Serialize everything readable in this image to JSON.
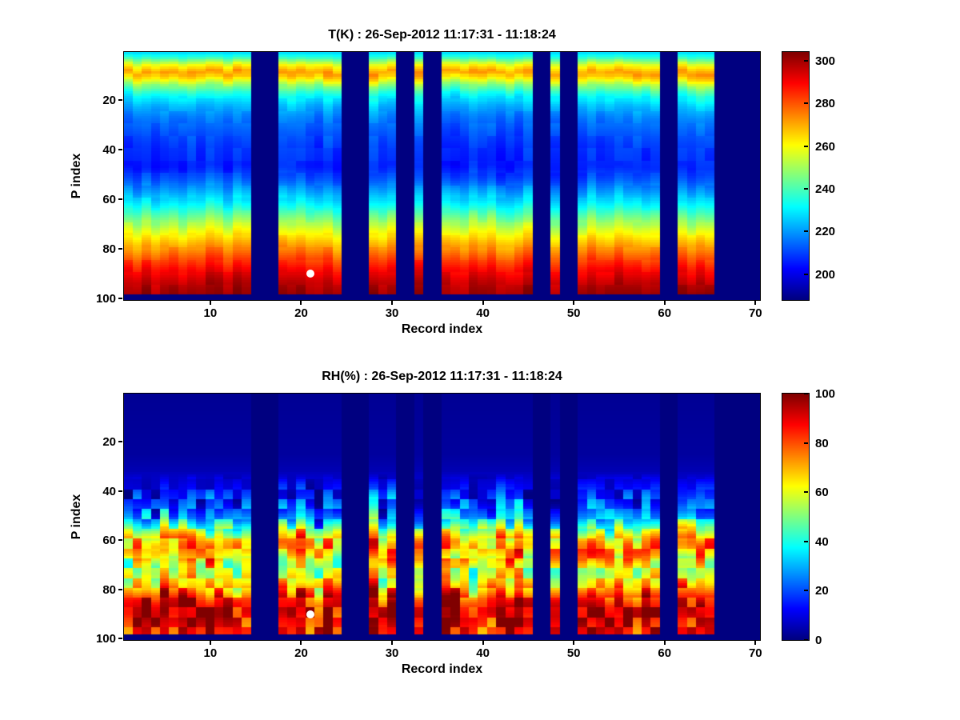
{
  "figure": {
    "background": "#ffffff"
  },
  "chart_data": [
    {
      "id": "temperature",
      "type": "heatmap",
      "title": "T(K) : 26-Sep-2012 11:17:31 - 11:18:24",
      "xlabel": "Record index",
      "ylabel": "P index",
      "x_range": [
        1,
        70
      ],
      "y_range": [
        1,
        100
      ],
      "x_ticks": [
        10,
        20,
        30,
        40,
        50,
        60,
        70
      ],
      "y_ticks": [
        20,
        40,
        60,
        80,
        100
      ],
      "colormap": "jet",
      "value_range": [
        188,
        304
      ],
      "colorbar_ticks": [
        200,
        220,
        240,
        260,
        280,
        300
      ],
      "missing_records": [
        [
          15,
          17
        ],
        [
          25,
          27
        ],
        [
          31,
          32
        ],
        [
          34,
          35
        ],
        [
          46,
          47
        ],
        [
          49,
          50
        ],
        [
          60,
          61
        ],
        [
          66,
          70
        ]
      ],
      "bottom_gap_rows": 2,
      "profile": [
        [
          1,
          228
        ],
        [
          3,
          238
        ],
        [
          6,
          260
        ],
        [
          9,
          272
        ],
        [
          11,
          265
        ],
        [
          14,
          248
        ],
        [
          18,
          233
        ],
        [
          22,
          224
        ],
        [
          27,
          217
        ],
        [
          33,
          212
        ],
        [
          40,
          208
        ],
        [
          47,
          206
        ],
        [
          52,
          212
        ],
        [
          57,
          221
        ],
        [
          62,
          231
        ],
        [
          67,
          243
        ],
        [
          72,
          256
        ],
        [
          77,
          267
        ],
        [
          81,
          275
        ],
        [
          85,
          283
        ],
        [
          89,
          290
        ],
        [
          93,
          296
        ],
        [
          97,
          300
        ],
        [
          100,
          301
        ]
      ],
      "noise": {
        "col_shift": 1.2,
        "column_amp": 3,
        "cell_amp": 2,
        "blob": 5,
        "weight_start": 0
      },
      "marker": {
        "x": 21,
        "y": 90,
        "color": "#ffffff"
      }
    },
    {
      "id": "humidity",
      "type": "heatmap",
      "title": "RH(%) : 26-Sep-2012 11:17:31 - 11:18:24",
      "xlabel": "Record index",
      "ylabel": "P index",
      "x_range": [
        1,
        70
      ],
      "y_range": [
        1,
        100
      ],
      "x_ticks": [
        10,
        20,
        30,
        40,
        50,
        60,
        70
      ],
      "y_ticks": [
        20,
        40,
        60,
        80,
        100
      ],
      "colormap": "jet",
      "value_range": [
        0,
        100
      ],
      "colorbar_ticks": [
        0,
        20,
        40,
        60,
        80,
        100
      ],
      "missing_records": [
        [
          15,
          17
        ],
        [
          25,
          27
        ],
        [
          31,
          32
        ],
        [
          34,
          35
        ],
        [
          46,
          47
        ],
        [
          49,
          50
        ],
        [
          60,
          61
        ],
        [
          66,
          70
        ]
      ],
      "bottom_gap_rows": 2,
      "profile": [
        [
          1,
          2
        ],
        [
          25,
          3
        ],
        [
          32,
          5
        ],
        [
          36,
          9
        ],
        [
          40,
          13
        ],
        [
          44,
          16
        ],
        [
          48,
          22
        ],
        [
          52,
          32
        ],
        [
          55,
          45
        ],
        [
          58,
          60
        ],
        [
          61,
          72
        ],
        [
          64,
          76
        ],
        [
          67,
          70
        ],
        [
          70,
          58
        ],
        [
          73,
          56
        ],
        [
          76,
          63
        ],
        [
          79,
          68
        ],
        [
          82,
          80
        ],
        [
          85,
          90
        ],
        [
          88,
          94
        ],
        [
          91,
          95
        ],
        [
          94,
          91
        ],
        [
          97,
          88
        ],
        [
          100,
          86
        ]
      ],
      "noise": {
        "col_shift": 3,
        "column_amp": 9,
        "cell_amp": 13,
        "blob": 4,
        "weight_start": 33
      },
      "marker": {
        "x": 21,
        "y": 90,
        "color": "#ffffff"
      }
    }
  ]
}
